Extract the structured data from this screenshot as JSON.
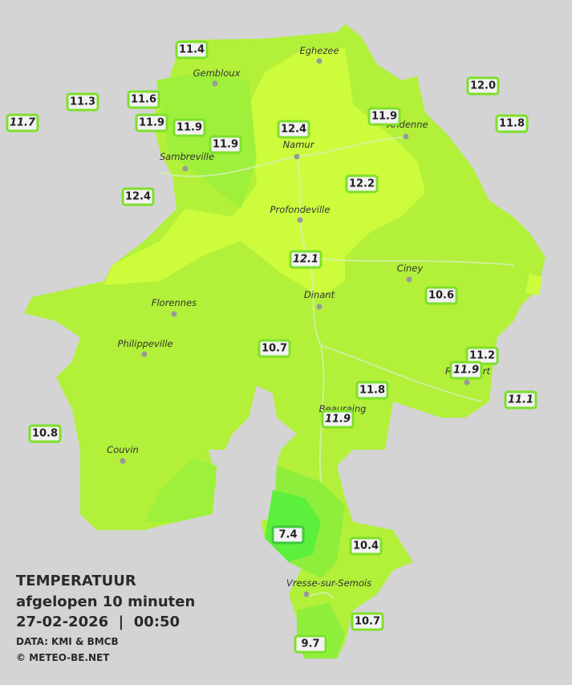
{
  "legend": {
    "title": "TEMPERATUUR",
    "subtitle": "afgelopen 10 minuten",
    "datetime": "27-02-2026  |  00:50",
    "source": "DATA: KMI & BMCB",
    "credit": "© METEO-BE.NET"
  },
  "cities": [
    "Eghezee",
    "Gembloux",
    "Andenne",
    "Namur",
    "Sambreville",
    "Profondeville",
    "Ciney",
    "Dinant",
    "Florennes",
    "Philippeville",
    "Couvin",
    "Vresse-sur-Semois",
    "Rochefort",
    "Beauraing"
  ],
  "stations": [
    {
      "value": "11.4"
    },
    {
      "value": "11.3"
    },
    {
      "value": "11.6"
    },
    {
      "value": "11.7",
      "italic": true
    },
    {
      "value": "11.9"
    },
    {
      "value": "11.9"
    },
    {
      "value": "11.9"
    },
    {
      "value": "12.4"
    },
    {
      "value": "11.9"
    },
    {
      "value": "12.0"
    },
    {
      "value": "11.8"
    },
    {
      "value": "12.4"
    },
    {
      "value": "12.2"
    },
    {
      "value": "12.1",
      "italic": true
    },
    {
      "value": "10.6"
    },
    {
      "value": "10.7"
    },
    {
      "value": "11.2"
    },
    {
      "value": "11.9",
      "italic": true
    },
    {
      "value": "11.8"
    },
    {
      "value": "11.9",
      "italic": true
    },
    {
      "value": "11.1",
      "italic": true
    },
    {
      "value": "10.8"
    },
    {
      "value": "7.4"
    },
    {
      "value": "10.4"
    },
    {
      "value": "10.7"
    },
    {
      "value": "9.7"
    }
  ]
}
